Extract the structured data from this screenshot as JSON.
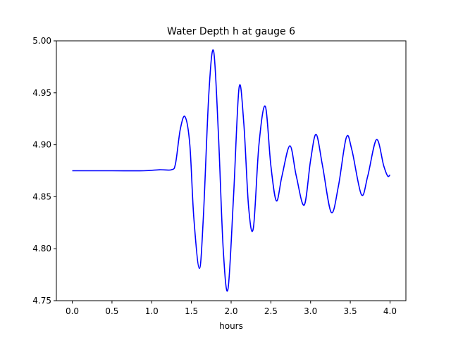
{
  "chart_data": {
    "type": "line",
    "title": "Water Depth h at gauge 6",
    "xlabel": "hours",
    "ylabel": "",
    "xlim": [
      -0.2,
      4.2
    ],
    "ylim": [
      4.75,
      5.0
    ],
    "xticks": [
      0.0,
      0.5,
      1.0,
      1.5,
      2.0,
      2.5,
      3.0,
      3.5,
      4.0
    ],
    "xtick_labels": [
      "0.0",
      "0.5",
      "1.0",
      "1.5",
      "2.0",
      "2.5",
      "3.0",
      "3.5",
      "4.0"
    ],
    "yticks": [
      4.75,
      4.8,
      4.85,
      4.9,
      4.95,
      5.0
    ],
    "ytick_labels": [
      "4.75",
      "4.80",
      "4.85",
      "4.90",
      "4.95",
      "5.00"
    ],
    "grid": false,
    "series": [
      {
        "color": "#0000ff",
        "x": [
          0.0,
          0.5,
          0.9,
          1.1,
          1.25,
          1.3,
          1.36,
          1.42,
          1.48,
          1.53,
          1.6,
          1.65,
          1.72,
          1.78,
          1.84,
          1.9,
          1.96,
          2.03,
          2.1,
          2.16,
          2.22,
          2.28,
          2.35,
          2.43,
          2.5,
          2.57,
          2.64,
          2.74,
          2.82,
          2.92,
          3.0,
          3.07,
          3.15,
          3.26,
          3.35,
          3.45,
          3.52,
          3.64,
          3.72,
          3.83,
          3.92,
          3.97,
          4.0
        ],
        "y": [
          4.875,
          4.875,
          4.875,
          4.876,
          4.876,
          4.882,
          4.915,
          4.927,
          4.9,
          4.83,
          4.781,
          4.83,
          4.95,
          4.99,
          4.91,
          4.8,
          4.761,
          4.85,
          4.955,
          4.92,
          4.84,
          4.82,
          4.9,
          4.937,
          4.88,
          4.846,
          4.87,
          4.899,
          4.87,
          4.842,
          4.885,
          4.91,
          4.88,
          4.835,
          4.86,
          4.907,
          4.895,
          4.852,
          4.87,
          4.905,
          4.88,
          4.87,
          4.871
        ]
      }
    ]
  }
}
